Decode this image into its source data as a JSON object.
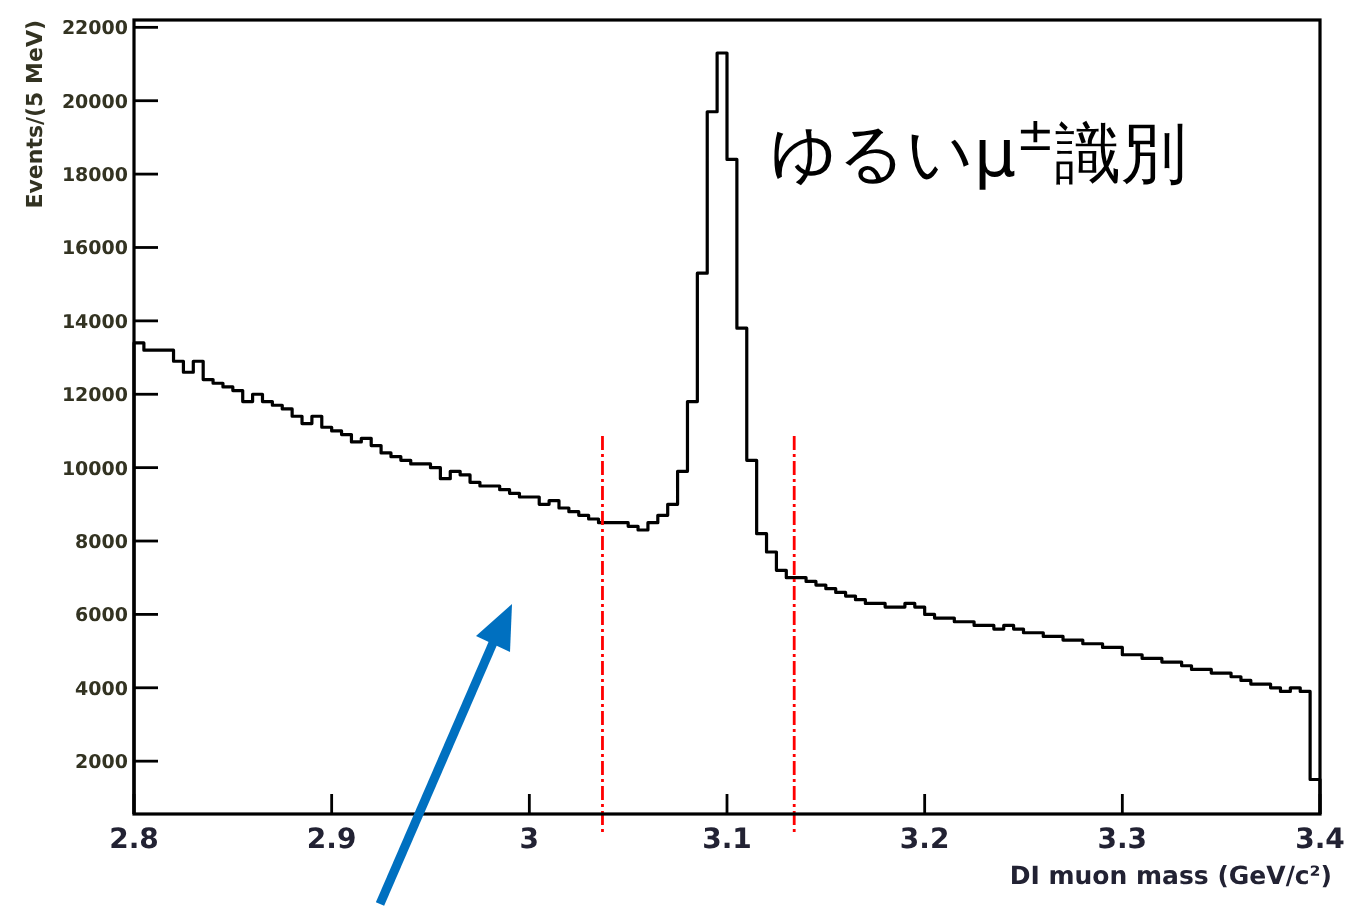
{
  "chart_data": {
    "type": "histogram",
    "xlabel": "DI muon mass (GeV/c²)",
    "ylabel": "Events/(5 MeV)",
    "annotations": [
      "ゆるいμ$^{±}$識別"
    ],
    "bins": [
      2.8,
      2.805,
      2.81,
      2.815,
      2.82,
      2.825,
      2.83,
      2.835,
      2.84,
      2.845,
      2.85,
      2.855,
      2.86,
      2.865,
      2.87,
      2.875,
      2.88,
      2.885,
      2.89,
      2.895,
      2.9,
      2.905,
      2.91,
      2.915,
      2.92,
      2.925,
      2.93,
      2.935,
      2.94,
      2.945,
      2.95,
      2.955,
      2.96,
      2.965,
      2.97,
      2.975,
      2.98,
      2.985,
      2.99,
      2.995,
      3.0,
      3.005,
      3.01,
      3.015,
      3.02,
      3.025,
      3.03,
      3.035,
      3.04,
      3.045,
      3.05,
      3.055,
      3.06,
      3.065,
      3.07,
      3.075,
      3.08,
      3.085,
      3.09,
      3.095,
      3.1,
      3.105,
      3.11,
      3.115,
      3.12,
      3.125,
      3.13,
      3.135,
      3.14,
      3.145,
      3.15,
      3.155,
      3.16,
      3.165,
      3.17,
      3.175,
      3.18,
      3.185,
      3.19,
      3.195,
      3.2,
      3.205,
      3.21,
      3.215,
      3.22,
      3.225,
      3.23,
      3.235,
      3.24,
      3.245,
      3.25,
      3.255,
      3.26,
      3.265,
      3.27,
      3.275,
      3.28,
      3.285,
      3.29,
      3.295,
      3.3,
      3.305,
      3.31,
      3.315,
      3.32,
      3.325,
      3.33,
      3.335,
      3.34,
      3.345,
      3.35,
      3.355,
      3.36,
      3.365,
      3.37,
      3.375,
      3.38,
      3.385,
      3.39,
      3.395,
      3.4
    ],
    "values": [
      13400,
      13200,
      13200,
      13200,
      12900,
      12600,
      12900,
      12400,
      12300,
      12200,
      12100,
      11800,
      12000,
      11800,
      11700,
      11600,
      11400,
      11200,
      11400,
      11100,
      11000,
      10900,
      10700,
      10800,
      10600,
      10400,
      10300,
      10200,
      10100,
      10100,
      10000,
      9700,
      9900,
      9800,
      9600,
      9500,
      9500,
      9400,
      9300,
      9200,
      9200,
      9000,
      9100,
      8900,
      8800,
      8700,
      8600,
      8500,
      8500,
      8500,
      8400,
      8300,
      8500,
      8700,
      9000,
      9900,
      11800,
      15300,
      19700,
      21300,
      18400,
      13800,
      10200,
      8200,
      7700,
      7200,
      7000,
      7000,
      6900,
      6800,
      6700,
      6600,
      6500,
      6400,
      6300,
      6300,
      6200,
      6200,
      6300,
      6200,
      6000,
      5900,
      5900,
      5800,
      5800,
      5700,
      5700,
      5600,
      5700,
      5600,
      5500,
      5500,
      5400,
      5400,
      5300,
      5300,
      5200,
      5200,
      5100,
      5100,
      4900,
      4900,
      4800,
      4800,
      4700,
      4700,
      4600,
      4500,
      4500,
      4400,
      4400,
      4300,
      4200,
      4100,
      4100,
      4000,
      3900,
      4000,
      3900,
      1500
    ],
    "color": "#000000",
    "xlim": [
      2.8,
      3.4
    ],
    "ylim": [
      560,
      22200
    ],
    "xticks": [
      2.8,
      2.9,
      3,
      3.1,
      3.2,
      3.3,
      3.4
    ],
    "yticks": [
      2000,
      4000,
      6000,
      8000,
      10000,
      12000,
      14000,
      16000,
      18000,
      20000,
      22000
    ],
    "ref_lines": [
      {
        "axis": "x",
        "value": 3.037,
        "color": "#ff0000",
        "line_style": "dashed"
      },
      {
        "axis": "x",
        "value": 3.134,
        "color": "#ff0000",
        "line_style": "dashed"
      }
    ],
    "grid": false
  }
}
